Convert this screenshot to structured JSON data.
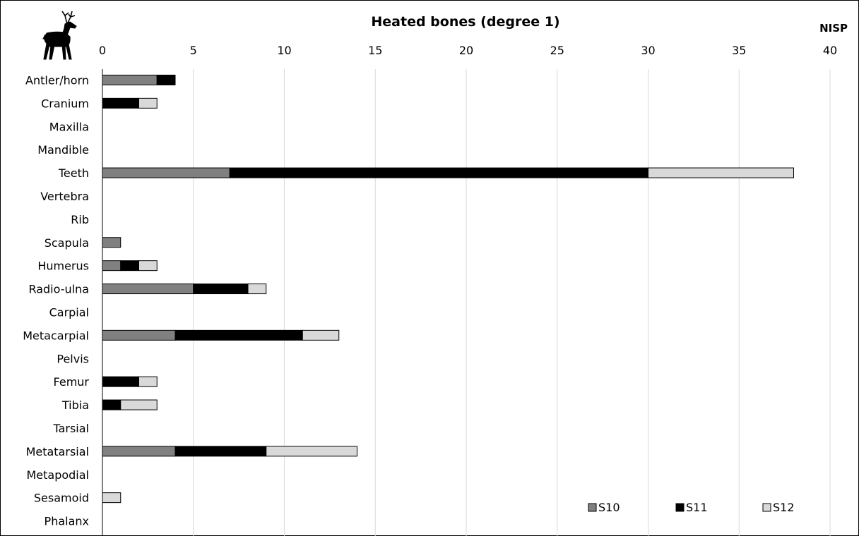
{
  "chart_data": {
    "type": "bar",
    "orientation": "horizontal",
    "stacked": true,
    "title": "Heated bones (degree 1)",
    "unit_label": "NISP",
    "xlim": [
      0,
      40
    ],
    "x_ticks": [
      "0",
      "5",
      "10",
      "15",
      "20",
      "25",
      "30",
      "35",
      "40"
    ],
    "x_axis_position": "top",
    "grid": true,
    "legend_position": "bottom-right",
    "categories": [
      "Antler/horn",
      "Cranium",
      "Maxilla",
      "Mandible",
      "Teeth",
      "Vertebra",
      "Rib",
      "Scapula",
      "Humerus",
      "Radio-ulna",
      "Carpial",
      "Metacarpial",
      "Pelvis",
      "Femur",
      "Tibia",
      "Tarsial",
      "Metatarsial",
      "Metapodial",
      "Sesamoid",
      "Phalanx"
    ],
    "series": [
      {
        "name": "S10",
        "color": "#808080",
        "values": [
          3,
          0,
          0,
          0,
          7,
          0,
          0,
          1,
          1,
          5,
          0,
          4,
          0,
          0,
          0,
          0,
          4,
          0,
          0,
          0
        ]
      },
      {
        "name": "S11",
        "color": "#000000",
        "values": [
          1,
          2,
          0,
          0,
          23,
          0,
          0,
          0,
          1,
          3,
          0,
          7,
          0,
          2,
          1,
          0,
          5,
          0,
          0,
          0
        ]
      },
      {
        "name": "S12",
        "color": "#d9d9d9",
        "values": [
          0,
          1,
          0,
          0,
          8,
          0,
          0,
          0,
          1,
          1,
          0,
          2,
          0,
          1,
          2,
          0,
          5,
          0,
          1,
          0
        ]
      }
    ],
    "icon": "deer-silhouette-icon"
  }
}
